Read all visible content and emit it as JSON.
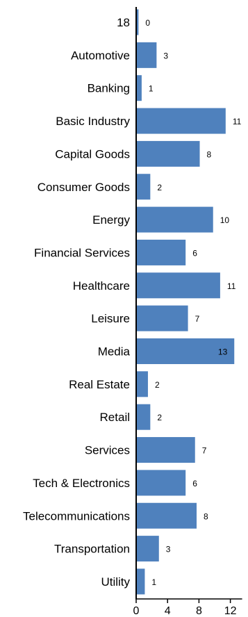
{
  "chart_data": {
    "type": "bar",
    "orientation": "horizontal",
    "title": "",
    "xlabel": "",
    "ylabel": "",
    "categories": [
      "18",
      "Automotive",
      "Banking",
      "Basic Industry",
      "Capital Goods",
      "Consumer Goods",
      "Energy",
      "Financial Services",
      "Healthcare",
      "Leisure",
      "Media",
      "Real Estate",
      "Retail",
      "Services",
      "Tech & Electronics",
      "Telecommunications",
      "Transportation",
      "Utility"
    ],
    "values": [
      0.3,
      2.6,
      0.7,
      11.4,
      8.1,
      1.8,
      9.8,
      6.3,
      10.7,
      6.6,
      12.5,
      1.5,
      1.8,
      7.5,
      6.3,
      7.7,
      2.9,
      1.1
    ],
    "data_labels": [
      "0",
      "3",
      "1",
      "11",
      "8",
      "2",
      "10",
      "6",
      "11",
      "7",
      "13",
      "2",
      "2",
      "7",
      "6",
      "8",
      "3",
      "1"
    ],
    "xlim": [
      0,
      13.5
    ],
    "xticks": [
      "0",
      "4",
      "8",
      "12"
    ],
    "xtick_values": [
      0,
      4,
      8,
      12
    ],
    "grid": false,
    "legend": "none",
    "colors": {
      "bar": "#4f81bd",
      "axis": "#000000",
      "text": "#000000"
    }
  }
}
